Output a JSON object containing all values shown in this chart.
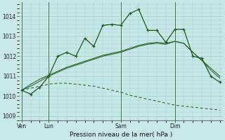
{
  "background_color": "#c8e8e8",
  "grid_color": "#a0c8c8",
  "line_color": "#1a5c1a",
  "line_color2": "#2a7a2a",
  "title": "Pression niveau de la mer( hPa )",
  "ylim": [
    1008.8,
    1014.7
  ],
  "yticks": [
    1009,
    1010,
    1011,
    1012,
    1013,
    1014
  ],
  "day_labels": [
    "Ven",
    "Lun",
    "Sam",
    "Dim"
  ],
  "day_positions": [
    0,
    3,
    11,
    17
  ],
  "xlim": [
    -0.3,
    22.3
  ],
  "series_main": [
    1010.3,
    1010.1,
    1010.45,
    1011.0,
    1012.0,
    1012.2,
    1012.0,
    1012.9,
    1012.5,
    1013.55,
    1013.6,
    1013.55,
    1014.15,
    1014.35,
    1013.3,
    1013.3,
    1012.7,
    1013.35,
    1013.35,
    1012.0,
    1011.9,
    1011.0,
    1010.7
  ],
  "series_trend1": [
    1010.3,
    1010.5,
    1010.75,
    1011.0,
    1011.2,
    1011.4,
    1011.55,
    1011.7,
    1011.85,
    1012.0,
    1012.1,
    1012.2,
    1012.35,
    1012.5,
    1012.6,
    1012.65,
    1012.6,
    1012.75,
    1012.65,
    1012.2,
    1011.8,
    1011.4,
    1011.0
  ],
  "series_trend2": [
    1010.3,
    1010.6,
    1010.85,
    1011.05,
    1011.25,
    1011.45,
    1011.6,
    1011.75,
    1011.9,
    1012.05,
    1012.15,
    1012.25,
    1012.4,
    1012.55,
    1012.65,
    1012.7,
    1012.65,
    1012.75,
    1012.65,
    1012.2,
    1011.8,
    1011.3,
    1010.9
  ],
  "series_dashed": [
    1010.3,
    1010.4,
    1010.5,
    1010.6,
    1010.65,
    1010.65,
    1010.6,
    1010.55,
    1010.5,
    1010.4,
    1010.3,
    1010.2,
    1010.05,
    1009.95,
    1009.85,
    1009.75,
    1009.65,
    1009.55,
    1009.5,
    1009.45,
    1009.4,
    1009.35,
    1009.3
  ],
  "figsize": [
    3.2,
    2.0
  ],
  "dpi": 100
}
